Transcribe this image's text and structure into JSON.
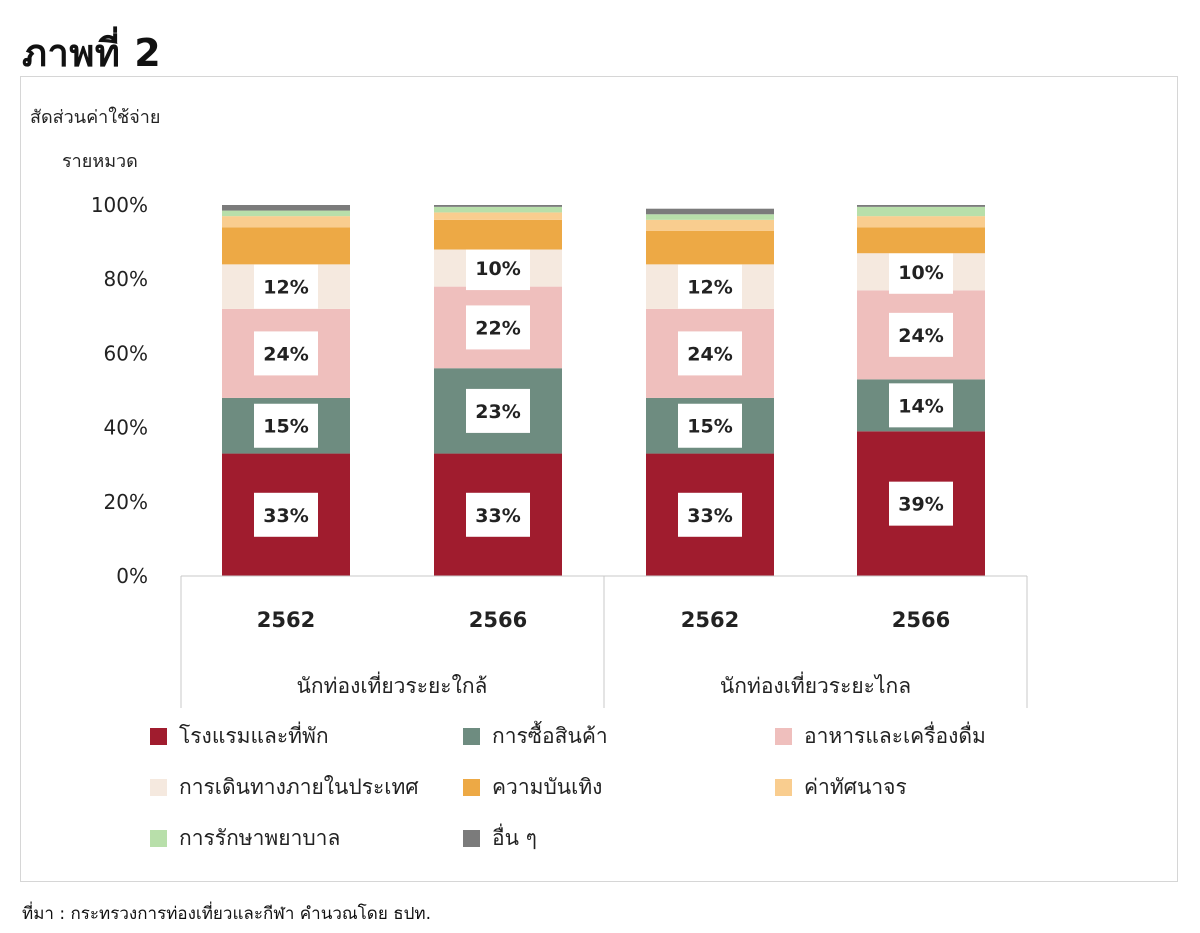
{
  "heading": "ภาพที่ 2",
  "source": "ที่มา : กระทรวงการท่องเที่ยวและกีฬา คำนวณโดย ธปท.",
  "chart_data": {
    "type": "bar",
    "stacked": true,
    "ylabel_line1": "สัดส่วนค่าใช้จ่าย",
    "ylabel_line2": "รายหมวด",
    "ylim": [
      0,
      100
    ],
    "yticks": [
      "0%",
      "20%",
      "40%",
      "60%",
      "80%",
      "100%"
    ],
    "categories": [
      "2562",
      "2566",
      "2562",
      "2566"
    ],
    "groups": [
      {
        "label": "นักท่องเที่ยวระยะใกล้",
        "categories": [
          0,
          1
        ]
      },
      {
        "label": "นักท่องเที่ยวระยะไกล",
        "categories": [
          2,
          3
        ]
      }
    ],
    "series": [
      {
        "name": "โรงแรมและที่พัก",
        "color": "#a01c2e",
        "values": [
          33,
          33,
          33,
          39
        ],
        "labels": [
          "33%",
          "33%",
          "33%",
          "39%"
        ]
      },
      {
        "name": "การซื้อสินค้า",
        "color": "#6e8c80",
        "values": [
          15,
          23,
          15,
          14
        ],
        "labels": [
          "15%",
          "23%",
          "15%",
          "14%"
        ]
      },
      {
        "name": "อาหารและเครื่องดื่ม",
        "color": "#efbfbd",
        "values": [
          24,
          22,
          24,
          24
        ],
        "labels": [
          "24%",
          "22%",
          "24%",
          "24%"
        ]
      },
      {
        "name": "การเดินทางภายในประเทศ",
        "color": "#f5e9df",
        "values": [
          12,
          10,
          12,
          10
        ],
        "labels": [
          "12%",
          "10%",
          "12%",
          "10%"
        ]
      },
      {
        "name": "ความบันเทิง",
        "color": "#eda945",
        "values": [
          10,
          8,
          9,
          7
        ],
        "labels": [
          "",
          "",
          "",
          ""
        ]
      },
      {
        "name": "ค่าทัศนาจร",
        "color": "#f9cd8f",
        "values": [
          3,
          2,
          3,
          3
        ],
        "labels": [
          "",
          "",
          "",
          ""
        ]
      },
      {
        "name": "การรักษาพยาบาล",
        "color": "#b8dfaa",
        "values": [
          1.5,
          1.5,
          1.5,
          2.5
        ],
        "labels": [
          "",
          "",
          "",
          ""
        ]
      },
      {
        "name": "อื่น ๆ",
        "color": "#7b7b7b",
        "values": [
          1.5,
          0.5,
          1.5,
          0.5
        ],
        "labels": [
          "",
          "",
          "",
          ""
        ]
      }
    ]
  }
}
